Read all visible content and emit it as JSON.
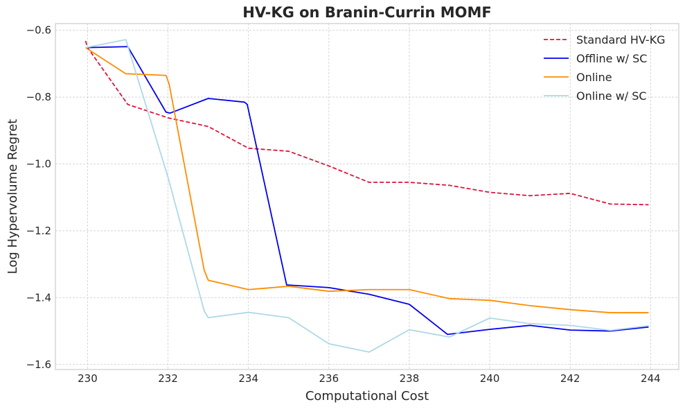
{
  "chart_data": {
    "type": "line",
    "title": "HV-KG on Branin-Currin MOMF",
    "xlabel": "Computational Cost",
    "ylabel": "Log Hypervolume Regret",
    "xlim": [
      229.2,
      244.7
    ],
    "ylim": [
      -1.615,
      -0.58
    ],
    "xticks": [
      230,
      232,
      234,
      236,
      238,
      240,
      242,
      244
    ],
    "yticks": [
      -0.6,
      -0.8,
      -1.0,
      -1.2,
      -1.4,
      -1.6
    ],
    "xtick_labels": [
      "230",
      "232",
      "234",
      "236",
      "238",
      "240",
      "242",
      "244"
    ],
    "ytick_labels": [
      "−0.6",
      "−0.8",
      "−1.0",
      "−1.2",
      "−1.4",
      "−1.6"
    ],
    "grid": true,
    "legend_position": "top-right",
    "series": [
      {
        "name": "Standard HV-KG",
        "color": "#dc143c",
        "dash": "dashed",
        "x": [
          229.95,
          230,
          231,
          232,
          233,
          234,
          235,
          236,
          237,
          238,
          239,
          240,
          241,
          242,
          243,
          243.95
        ],
        "y": [
          -0.632,
          -0.652,
          -0.822,
          -0.862,
          -0.888,
          -0.953,
          -0.962,
          -1.006,
          -1.055,
          -1.055,
          -1.064,
          -1.085,
          -1.095,
          -1.088,
          -1.12,
          -1.122
        ]
      },
      {
        "name": "Offline w/ SC",
        "color": "#0000ee",
        "dash": "solid",
        "x": [
          229.95,
          231,
          231.95,
          232.05,
          233,
          233.9,
          233.97,
          234.95,
          236,
          237,
          238,
          238.95,
          240,
          241,
          242,
          243,
          243.95
        ],
        "y": [
          -0.652,
          -0.649,
          -0.845,
          -0.848,
          -0.804,
          -0.815,
          -0.822,
          -1.362,
          -1.37,
          -1.39,
          -1.42,
          -1.51,
          -1.495,
          -1.483,
          -1.497,
          -1.5,
          -1.488
        ]
      },
      {
        "name": "Online",
        "color": "#ff8c00",
        "dash": "solid",
        "x": [
          229.95,
          230.95,
          231.95,
          232.03,
          232.9,
          233,
          234,
          235,
          236,
          237,
          238,
          239,
          240,
          241,
          242,
          243,
          243.95
        ],
        "y": [
          -0.652,
          -0.73,
          -0.735,
          -0.762,
          -1.318,
          -1.348,
          -1.376,
          -1.366,
          -1.381,
          -1.376,
          -1.376,
          -1.403,
          -1.408,
          -1.424,
          -1.436,
          -1.445,
          -1.445
        ]
      },
      {
        "name": "Online w/ SC",
        "color": "#add8e6",
        "dash": "solid",
        "x": [
          229.95,
          230.95,
          232,
          232.9,
          233,
          234,
          235,
          236,
          237,
          238,
          239,
          240,
          241,
          242,
          243,
          243.95
        ],
        "y": [
          -0.652,
          -0.628,
          -1.04,
          -1.44,
          -1.46,
          -1.444,
          -1.46,
          -1.538,
          -1.563,
          -1.496,
          -1.518,
          -1.461,
          -1.478,
          -1.483,
          -1.498,
          -1.484
        ]
      }
    ]
  }
}
